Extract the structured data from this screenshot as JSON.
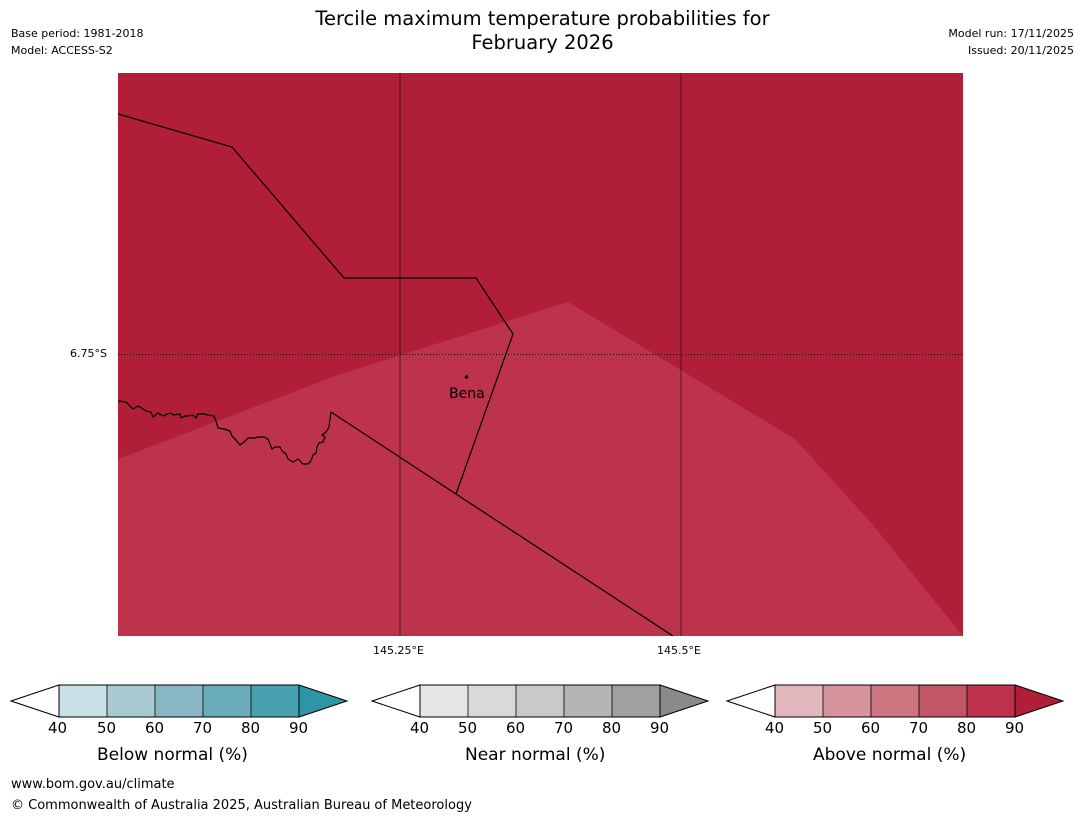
{
  "title": {
    "line1": "Tercile maximum temperature probabilities for",
    "line2": "February 2026"
  },
  "meta_left": {
    "base_period": "Base period: 1981-2018",
    "model": "Model: ACCESS-S2"
  },
  "meta_right": {
    "model_run": "Model run: 17/11/2025",
    "issued": "Issued: 20/11/2025"
  },
  "map": {
    "colors": {
      "above_80_90": "#b01e38",
      "above_70_80": "#bc334b"
    },
    "latitude_labels": [
      "6.75°S"
    ],
    "longitude_labels": [
      "145.25°E",
      "145.5°E"
    ],
    "place": {
      "name": "Bena"
    }
  },
  "colorbars": [
    {
      "id": "below",
      "label": "Below normal (%)",
      "ticks": [
        "40",
        "50",
        "60",
        "70",
        "80",
        "90"
      ],
      "colors": [
        "#c9e1e6",
        "#a8c9cf",
        "#88b6c2",
        "#6aacba",
        "#47a1b0",
        "#2e95a5"
      ]
    },
    {
      "id": "near",
      "label": "Near normal (%)",
      "ticks": [
        "40",
        "50",
        "60",
        "70",
        "80",
        "90"
      ],
      "colors": [
        "#e6e6e6",
        "#d9d9d9",
        "#c9c9c9",
        "#b5b5b5",
        "#a0a0a0",
        "#8a8a8a"
      ]
    },
    {
      "id": "above",
      "label": "Above normal (%)",
      "ticks": [
        "40",
        "50",
        "60",
        "70",
        "80",
        "90"
      ],
      "colors": [
        "#e2b8be",
        "#d6949c",
        "#cc7580",
        "#c25666",
        "#bc334b",
        "#b01e38"
      ]
    }
  ],
  "footer": {
    "url": "www.bom.gov.au/climate",
    "copyright": "© Commonwealth of Australia 2025, Australian Bureau of Meteorology"
  }
}
